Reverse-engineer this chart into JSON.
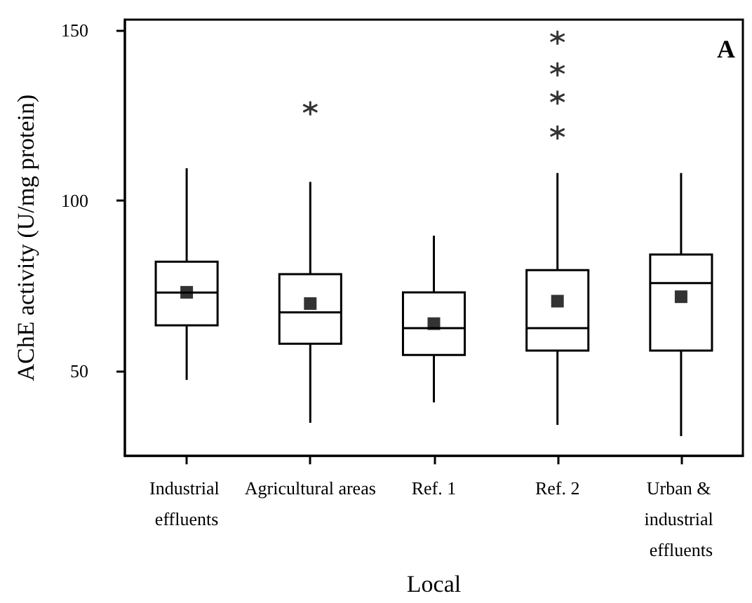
{
  "chart_data": {
    "type": "box",
    "xlabel": "Local",
    "ylabel": "AChE activity (U/mg protein)",
    "categories": [
      "Industrial effluents",
      "Agricultural areas",
      "Ref. 1",
      "Ref. 2",
      "Urban & industrial effluents"
    ],
    "boxes": [
      {
        "low": 47.3,
        "q1": 63.3,
        "median": 72.9,
        "q3": 82,
        "high": 109.4,
        "mean": 73
      },
      {
        "low": 34.7,
        "q1": 57.9,
        "median": 67.1,
        "q3": 78.3,
        "high": 105.4,
        "mean": 69.7,
        "outliers": [
          127
        ]
      },
      {
        "low": 40.7,
        "q1": 54.6,
        "median": 62.5,
        "q3": 73,
        "high": 89.6,
        "mean": 63.8
      },
      {
        "low": 34.1,
        "q1": 55.9,
        "median": 62.5,
        "q3": 79.5,
        "high": 108,
        "mean": 70.4,
        "outliers": [
          119.9,
          130.1,
          138.4,
          147.7
        ]
      },
      {
        "low": 30.8,
        "q1": 55.9,
        "median": 75.7,
        "q3": 84.1,
        "high": 108,
        "mean": 71.7
      }
    ],
    "ylim": [
      25,
      153
    ],
    "yticks": [
      50,
      100,
      150
    ],
    "grid": false,
    "annotations": [
      "A"
    ]
  }
}
